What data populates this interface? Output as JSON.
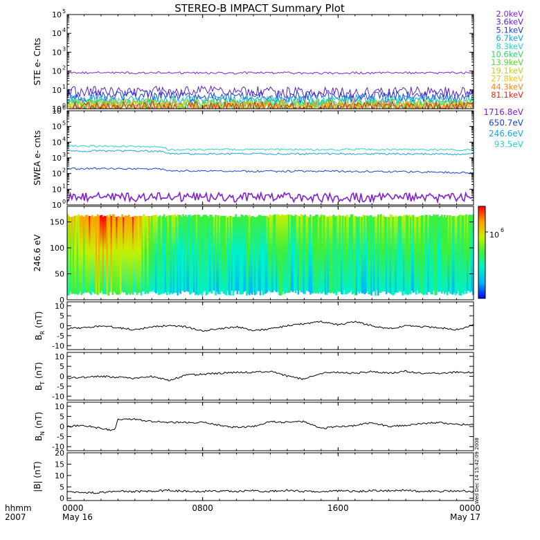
{
  "title": "STEREO-B IMPACT Summary Plot",
  "stamp": "Wed Dec 14 15:42:09 2008",
  "time_axis": {
    "row_labels": [
      "hhmm",
      "2007"
    ],
    "ticks": [
      {
        "t": 0,
        "time": "0000",
        "date": "May 16"
      },
      {
        "t": 8,
        "time": "0800",
        "date": ""
      },
      {
        "t": 16,
        "time": "1600",
        "date": ""
      },
      {
        "t": 24,
        "time": "0000",
        "date": "May 17"
      }
    ],
    "range_hours": [
      0,
      24
    ]
  },
  "colors": {
    "trace": "#000000",
    "ste": [
      "#7f1fd2",
      "#5a1fd2",
      "#1a3fd8",
      "#1aa2e6",
      "#26d6c2",
      "#2ed66a",
      "#5cd62a",
      "#b8d22a",
      "#f0c21a",
      "#f08a1a",
      "#d82a1a"
    ],
    "swea": [
      "#7f1fd2",
      "#1a3fd8",
      "#1aa2e6",
      "#26d6c2"
    ]
  },
  "chart_data": [
    {
      "type": "line",
      "panel": "ste",
      "ylabel": "STE e- Cnts",
      "yscale": "log",
      "ylim": [
        1,
        100000
      ],
      "y_ticks": [
        "10",
        "10",
        "10",
        "10",
        "10",
        "10"
      ],
      "y_tick_exps": [
        "0",
        "1",
        "2",
        "3",
        "4",
        "5"
      ],
      "x": [
        0,
        2,
        4,
        6,
        8,
        10,
        12,
        14,
        16,
        18,
        20,
        22,
        24
      ],
      "series": [
        {
          "name": "2.0keV",
          "values": [
            80,
            80,
            79,
            80,
            78,
            79,
            80,
            78,
            79,
            80,
            79,
            80,
            80
          ]
        },
        {
          "name": "3.6keV",
          "values": [
            7.5,
            7.8,
            8,
            7.6,
            8.2,
            7.8,
            7.4,
            6.5,
            7,
            7.6,
            7.5,
            7.2,
            7.5
          ]
        },
        {
          "name": "5.1keV",
          "values": [
            4.2,
            4.4,
            4.5,
            4.3,
            4.6,
            4.4,
            4.2,
            3.8,
            4,
            4.3,
            4.2,
            4.1,
            4.2
          ]
        },
        {
          "name": "6.7keV",
          "values": [
            2.8,
            2.9,
            3,
            2.8,
            3,
            2.9,
            2.8,
            2.6,
            2.7,
            2.8,
            2.8,
            2.7,
            2.8
          ]
        },
        {
          "name": "8.3keV",
          "values": [
            2.2,
            2.2,
            2.3,
            2.2,
            2.3,
            2.2,
            2.2,
            2.1,
            2.1,
            2.2,
            2.2,
            2.1,
            2.2
          ]
        },
        {
          "name": "10.6keV",
          "values": [
            1.8,
            1.8,
            1.9,
            1.8,
            1.9,
            1.8,
            1.8,
            1.7,
            1.7,
            1.8,
            1.8,
            1.7,
            1.8
          ]
        },
        {
          "name": "13.9keV",
          "values": [
            1.6,
            1.6,
            1.7,
            1.6,
            1.6,
            1.6,
            1.6,
            1.5,
            1.5,
            1.6,
            1.6,
            1.5,
            1.6
          ]
        },
        {
          "name": "19.1keV",
          "values": [
            1.5,
            1.5,
            1.5,
            1.5,
            1.5,
            1.5,
            1.5,
            1.4,
            1.4,
            1.5,
            1.5,
            1.4,
            1.5
          ]
        },
        {
          "name": "27.8keV",
          "values": [
            1.4,
            1.4,
            1.4,
            1.4,
            1.4,
            1.4,
            1.4,
            1.3,
            1.3,
            1.4,
            1.4,
            1.3,
            1.4
          ]
        },
        {
          "name": "44.3keV",
          "values": [
            1.3,
            1.3,
            1.3,
            1.3,
            1.3,
            1.3,
            1.3,
            1.25,
            1.25,
            1.3,
            1.3,
            1.25,
            1.3
          ]
        },
        {
          "name": "81.1keV",
          "values": [
            1.2,
            1.2,
            1.2,
            1.2,
            1.2,
            1.2,
            1.2,
            1.15,
            1.15,
            1.2,
            1.2,
            1.15,
            1.2
          ]
        }
      ]
    },
    {
      "type": "line",
      "panel": "swea",
      "ylabel": "SWEA e- cnts",
      "yscale": "log",
      "ylim": [
        1,
        1000000
      ],
      "y_ticks": [
        "10",
        "10",
        "10",
        "10",
        "10",
        "10",
        "10"
      ],
      "y_tick_exps": [
        "0",
        "1",
        "2",
        "3",
        "4",
        "5",
        "6"
      ],
      "x": [
        0,
        2,
        4,
        5.5,
        6,
        8,
        10,
        12,
        14,
        16,
        18,
        20,
        22,
        24
      ],
      "series": [
        {
          "name": "1716.8eV",
          "values": [
            3,
            3,
            3,
            3,
            3,
            3,
            3,
            3,
            3,
            3,
            3,
            3,
            3,
            3
          ]
        },
        {
          "name": "650.7eV",
          "values": [
            200,
            205,
            200,
            190,
            150,
            140,
            140,
            138,
            140,
            140,
            135,
            130,
            120,
            110
          ]
        },
        {
          "name": "246.6eV",
          "values": [
            2800,
            2800,
            2700,
            2600,
            1800,
            1800,
            1850,
            1800,
            1750,
            1800,
            1800,
            1750,
            1750,
            1700
          ]
        },
        {
          "name": "93.5eV",
          "values": [
            5600,
            5600,
            5400,
            5200,
            3300,
            3300,
            3400,
            3400,
            3300,
            3400,
            3400,
            3300,
            3300,
            3200
          ]
        }
      ]
    },
    {
      "type": "heatmap",
      "panel": "pad",
      "ylabel": "246.6 eV",
      "ylim": [
        0,
        180
      ],
      "y_ticks": [
        0,
        50,
        100,
        150
      ],
      "colorbar_label": "10",
      "colorbar_exp": "6",
      "colorbar_stops": [
        "#0000ff",
        "#00b4ff",
        "#00f0c8",
        "#3cf03c",
        "#c8f000",
        "#ffa000",
        "#ff0000"
      ],
      "x_segments": [
        0,
        2,
        4,
        5.5,
        7,
        9,
        11,
        12.5,
        14,
        16,
        18,
        20,
        22,
        24
      ],
      "segment_levels_low": [
        0.45,
        0.5,
        0.48,
        0.3,
        0.25,
        0.28,
        0.2,
        0.35,
        0.3,
        0.35,
        0.3,
        0.32,
        0.3
      ],
      "segment_levels_high": [
        0.7,
        0.92,
        0.85,
        0.55,
        0.5,
        0.55,
        0.5,
        0.6,
        0.55,
        0.6,
        0.55,
        0.6,
        0.55
      ]
    },
    {
      "type": "line",
      "panel": "br",
      "ylabel": "B",
      "ylabel_sub": "R",
      "ylabel_unit": " (nT)",
      "ylim": [
        -12,
        12
      ],
      "y_ticks": [
        -10,
        -5,
        0,
        5,
        10
      ],
      "x": [
        0,
        1,
        2,
        3,
        4,
        5,
        6,
        7,
        8,
        9,
        10,
        11,
        12,
        13,
        14,
        15,
        16,
        17,
        18,
        19,
        20,
        21,
        22,
        23,
        24
      ],
      "values": [
        -1.5,
        -1,
        0,
        -1,
        -2,
        -0.5,
        0,
        -0.5,
        -2.5,
        -1.5,
        -0.5,
        -2.5,
        -1.5,
        0,
        1,
        2,
        0.5,
        2,
        0,
        -1.5,
        0,
        -0.5,
        -1,
        -2,
        0.5
      ]
    },
    {
      "type": "line",
      "panel": "bt",
      "ylabel": "B",
      "ylabel_sub": "T",
      "ylabel_unit": " (nT)",
      "ylim": [
        -12,
        12
      ],
      "y_ticks": [
        -10,
        -5,
        0,
        5,
        10
      ],
      "x": [
        0,
        1,
        2,
        3,
        4,
        5,
        6,
        7,
        8,
        9,
        10,
        11,
        12,
        13,
        14,
        15,
        16,
        17,
        18,
        19,
        20,
        21,
        22,
        23,
        24
      ],
      "values": [
        -1,
        -0.5,
        0,
        -0.5,
        -1,
        0,
        -2,
        0.5,
        1,
        1.5,
        2,
        2,
        2.5,
        0,
        -1.5,
        1.5,
        2,
        1.5,
        2.5,
        1.5,
        2.5,
        1.5,
        1.5,
        2,
        2
      ]
    },
    {
      "type": "line",
      "panel": "bn",
      "ylabel": "B",
      "ylabel_sub": "N",
      "ylabel_unit": " (nT)",
      "ylim": [
        -12,
        12
      ],
      "y_ticks": [
        -10,
        -5,
        0,
        5,
        10
      ],
      "x": [
        0,
        1,
        2,
        2.8,
        3,
        4,
        5,
        6,
        7,
        8,
        9,
        10,
        11,
        12,
        13,
        14,
        15,
        16,
        17,
        18,
        19,
        20,
        21,
        22,
        23,
        24
      ],
      "values": [
        0,
        0.5,
        -1,
        -2,
        3.5,
        3.5,
        2.5,
        2,
        2,
        2,
        0.5,
        -0.5,
        0,
        2.5,
        2,
        2.5,
        -1,
        0,
        0.5,
        2,
        0,
        0.5,
        1.5,
        2,
        1,
        1
      ]
    },
    {
      "type": "line",
      "panel": "bmag",
      "ylabel": "|B| (nT)",
      "ylim": [
        -1,
        20
      ],
      "y_ticks": [
        0,
        5,
        10,
        15,
        20
      ],
      "x": [
        0,
        1,
        2,
        3,
        4,
        5,
        6,
        7,
        8,
        9,
        10,
        11,
        12,
        13,
        14,
        15,
        16,
        17,
        18,
        19,
        20,
        21,
        22,
        23,
        24
      ],
      "values": [
        3,
        2.5,
        2.5,
        3,
        3,
        3,
        3.5,
        3,
        3,
        3.2,
        3,
        3.3,
        3,
        3.5,
        3,
        3,
        3.2,
        3,
        3.3,
        3.3,
        3.5,
        3,
        3,
        3.3,
        3
      ]
    }
  ]
}
